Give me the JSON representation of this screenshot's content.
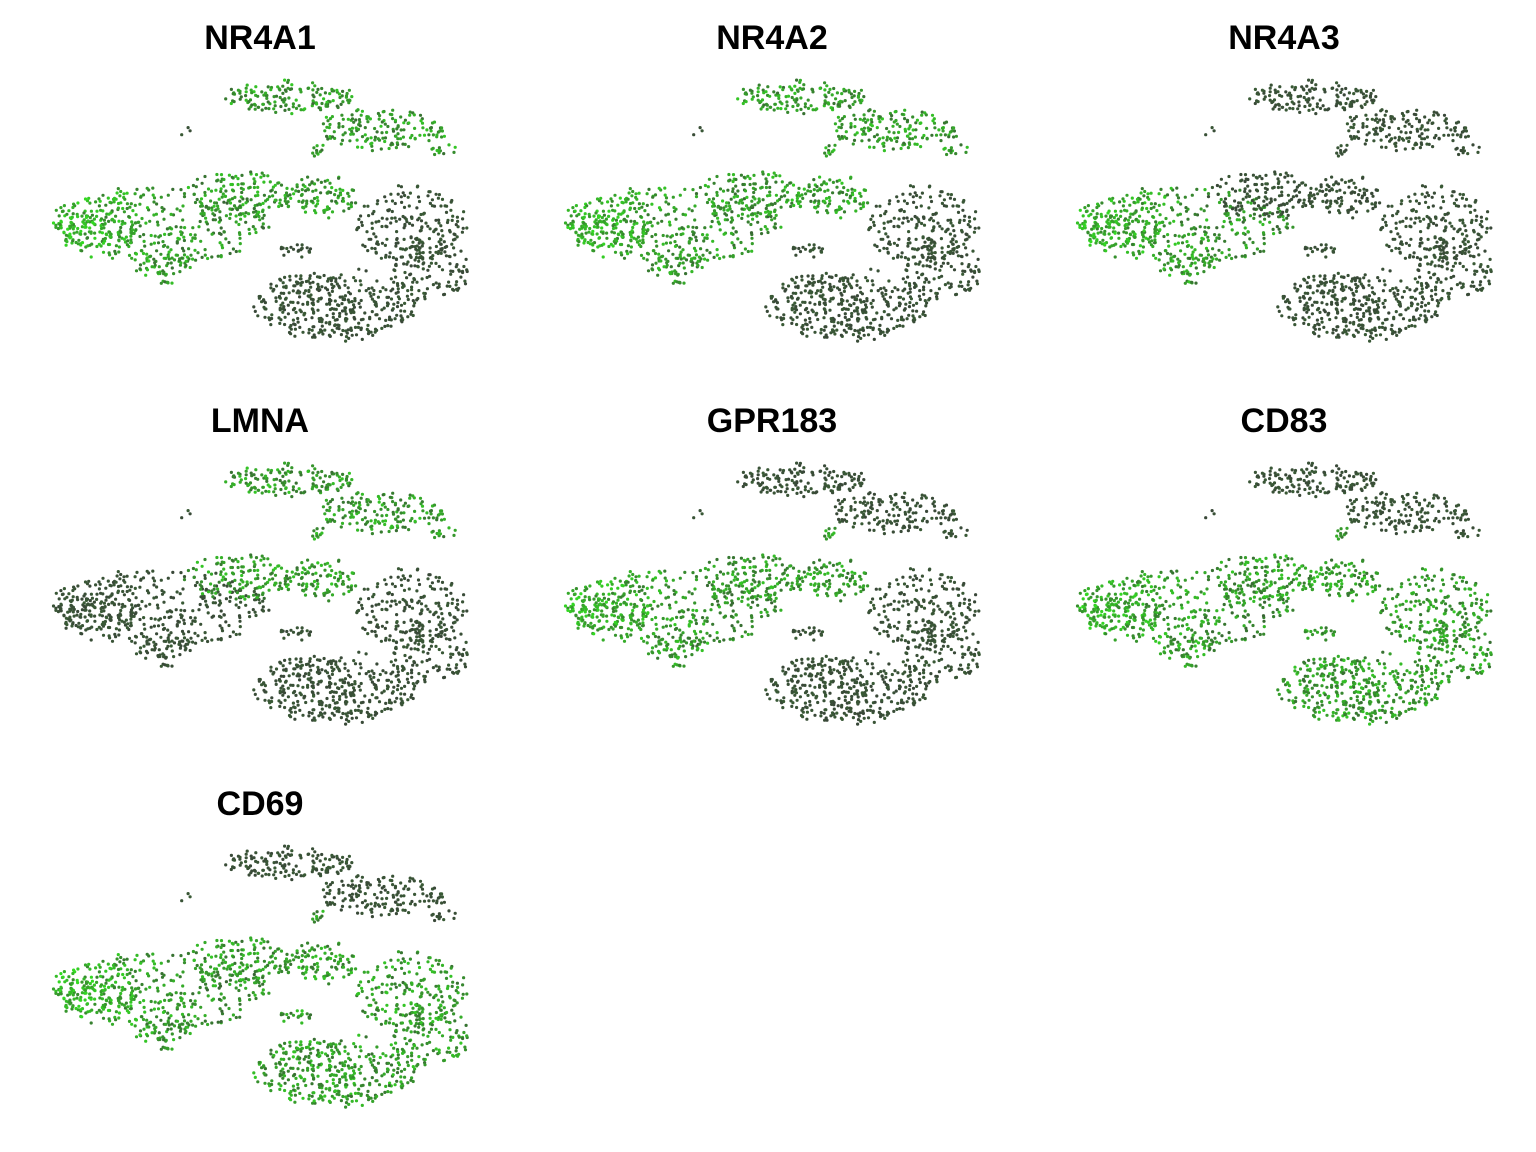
{
  "figure": {
    "background": "#ffffff",
    "low_color": "#3a3a3a",
    "high_color": "#33dd22"
  },
  "chart_data": [
    {
      "type": "scatter",
      "title": "NR4A1",
      "xlabel": "",
      "ylabel": "",
      "grid": false,
      "legend": "none",
      "high_regions": [
        "left-cluster",
        "middle-band",
        "upper-right-lobe"
      ]
    },
    {
      "type": "scatter",
      "title": "NR4A2",
      "xlabel": "",
      "ylabel": "",
      "grid": false,
      "legend": "none",
      "high_regions": [
        "left-cluster",
        "middle-band",
        "upper-right-lobe"
      ]
    },
    {
      "type": "scatter",
      "title": "NR4A3",
      "xlabel": "",
      "ylabel": "",
      "grid": false,
      "legend": "none",
      "high_regions": [
        "left-cluster"
      ]
    },
    {
      "type": "scatter",
      "title": "LMNA",
      "xlabel": "",
      "ylabel": "",
      "grid": false,
      "legend": "none",
      "high_regions": [
        "middle-band",
        "upper-right-lobe"
      ]
    },
    {
      "type": "scatter",
      "title": "GPR183",
      "xlabel": "",
      "ylabel": "",
      "grid": false,
      "legend": "none",
      "high_regions": [
        "left-cluster",
        "middle-band"
      ]
    },
    {
      "type": "scatter",
      "title": "CD83",
      "xlabel": "",
      "ylabel": "",
      "grid": false,
      "legend": "none",
      "high_regions": [
        "left-cluster",
        "middle-band",
        "lower-right-lobe"
      ]
    },
    {
      "type": "scatter",
      "title": "CD69",
      "xlabel": "",
      "ylabel": "",
      "grid": false,
      "legend": "none",
      "high_regions": [
        "left-cluster",
        "middle-band",
        "lower-right-lobe"
      ]
    }
  ]
}
